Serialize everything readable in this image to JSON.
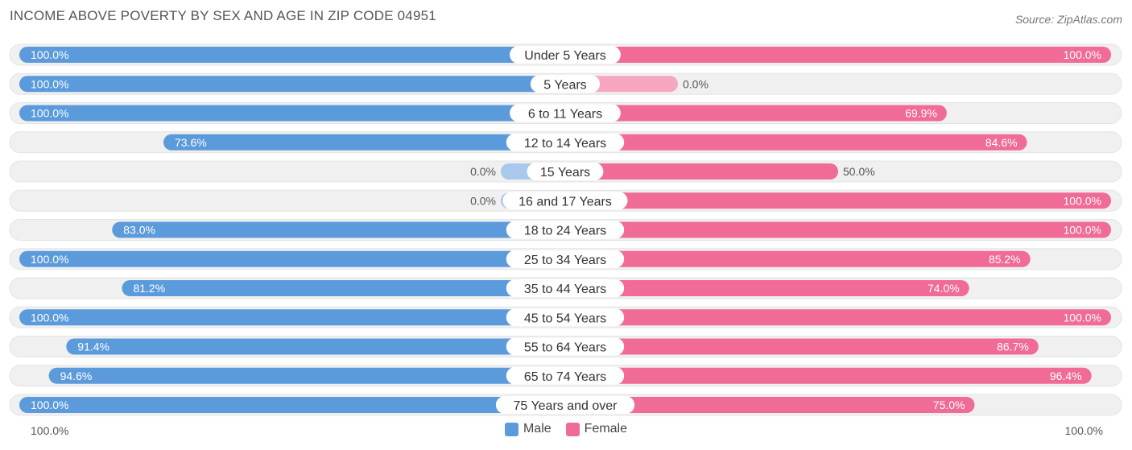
{
  "title": "INCOME ABOVE POVERTY BY SEX AND AGE IN ZIP CODE 04951",
  "source": "Source: ZipAtlas.com",
  "colors": {
    "male_full": "#5b9bdc",
    "male_light": "#a8c8ec",
    "female_full": "#f06b96",
    "female_light": "#f7a6c0",
    "track": "#f0f0f0",
    "track_border": "#e3e3e3"
  },
  "legend": {
    "male": "Male",
    "female": "Female"
  },
  "axis": {
    "left": "100.0%",
    "right": "100.0%"
  },
  "chart_data": {
    "type": "bar",
    "orientation": "horizontal-diverging",
    "title": "INCOME ABOVE POVERTY BY SEX AND AGE IN ZIP CODE 04951",
    "categories": [
      "Under 5 Years",
      "5 Years",
      "6 to 11 Years",
      "12 to 14 Years",
      "15 Years",
      "16 and 17 Years",
      "18 to 24 Years",
      "25 to 34 Years",
      "35 to 44 Years",
      "45 to 54 Years",
      "55 to 64 Years",
      "65 to 74 Years",
      "75 Years and over"
    ],
    "series": [
      {
        "name": "Male",
        "values": [
          100.0,
          100.0,
          100.0,
          73.6,
          0.0,
          0.0,
          83.0,
          100.0,
          81.2,
          100.0,
          91.4,
          94.6,
          100.0
        ]
      },
      {
        "name": "Female",
        "values": [
          100.0,
          0.0,
          69.9,
          84.6,
          50.0,
          100.0,
          100.0,
          85.2,
          74.0,
          100.0,
          86.7,
          96.4,
          75.0
        ]
      }
    ],
    "value_labels": {
      "Male": [
        "100.0%",
        "100.0%",
        "100.0%",
        "73.6%",
        "0.0%",
        "0.0%",
        "83.0%",
        "100.0%",
        "81.2%",
        "100.0%",
        "91.4%",
        "94.6%",
        "100.0%"
      ],
      "Female": [
        "100.0%",
        "0.0%",
        "69.9%",
        "84.6%",
        "50.0%",
        "100.0%",
        "100.0%",
        "85.2%",
        "74.0%",
        "100.0%",
        "86.7%",
        "96.4%",
        "75.0%"
      ]
    },
    "xlim": [
      0,
      100
    ],
    "legend_position": "bottom-center"
  }
}
